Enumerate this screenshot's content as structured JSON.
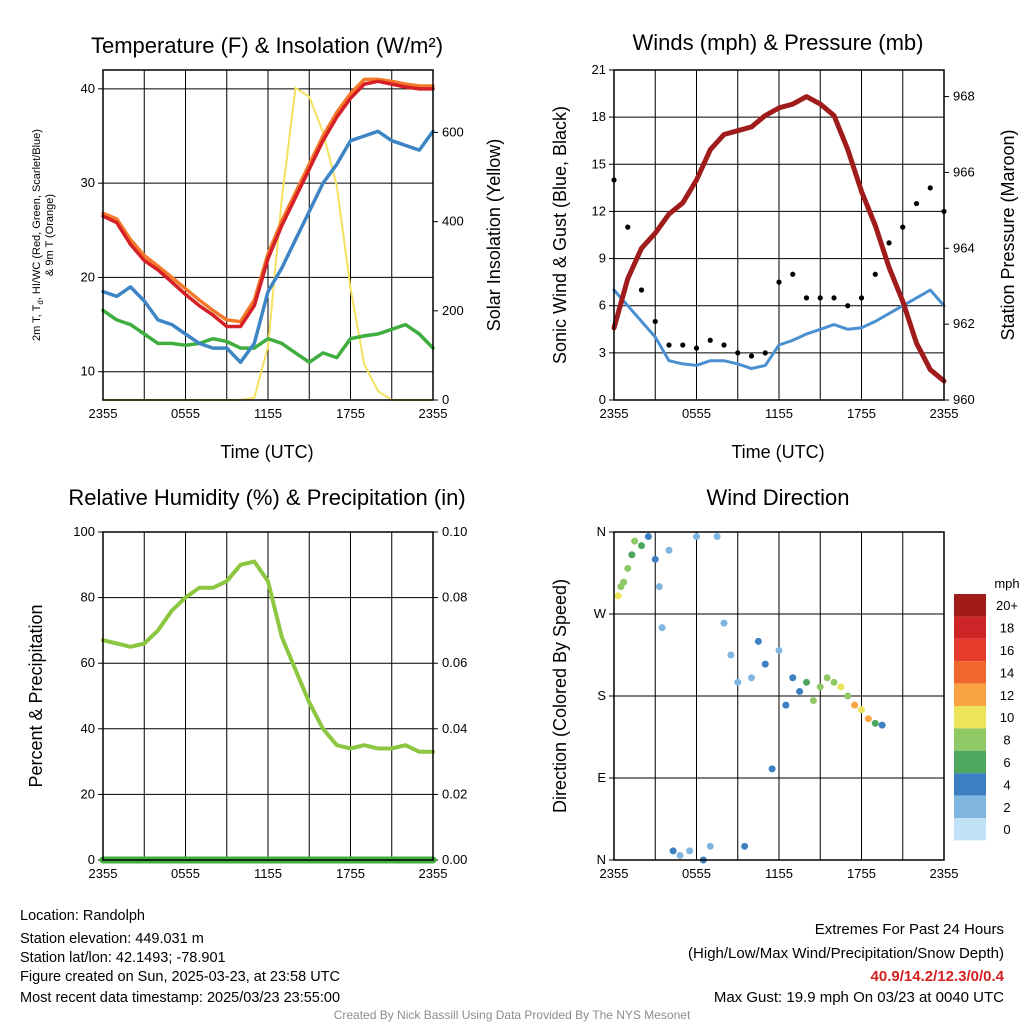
{
  "x_ticks": [
    "2355",
    "0555",
    "1155",
    "1755",
    "2355"
  ],
  "panels": {
    "temp": {
      "title": "Temperature (F) & Insolation (W/m²)",
      "ylabel_left_1": "2m T, T",
      "ylabel_left_sub": "d",
      "ylabel_left_2": ", HI/WC (Red, Green, Scarlet/Blue)",
      "ylabel_left_3": "& 9m T (Orange)",
      "ylabel_right": "Solar Insolation (Yellow)",
      "xlabel": "Time (UTC)",
      "yticks_left": [
        "10",
        "20",
        "30",
        "40"
      ],
      "yticks_right": [
        "0",
        "200",
        "400",
        "600"
      ]
    },
    "wind": {
      "title": "Winds (mph) & Pressure (mb)",
      "ylabel_left": "Sonic Wind & Gust (Blue, Black)",
      "ylabel_right": "Station Pressure (Maroon)",
      "xlabel": "Time (UTC)",
      "yticks_left": [
        "0",
        "3",
        "6",
        "9",
        "12",
        "15",
        "18",
        "21"
      ],
      "yticks_right": [
        "960",
        "962",
        "964",
        "966",
        "968"
      ]
    },
    "rh": {
      "title": "Relative Humidity (%) & Precipitation (in)",
      "ylabel_left": "Percent & Precipitation",
      "yticks_left": [
        "0",
        "20",
        "40",
        "60",
        "80",
        "100"
      ],
      "yticks_right": [
        "0.00",
        "0.02",
        "0.04",
        "0.06",
        "0.08",
        "0.10"
      ]
    },
    "dir": {
      "title": "Wind Direction",
      "ylabel_left": "Direction (Colored By Speed)",
      "yticks_left": [
        "N",
        "E",
        "S",
        "W",
        "N"
      ],
      "legend_unit": "mph",
      "legend_labels": [
        "20+",
        "18",
        "16",
        "14",
        "12",
        "10",
        "8",
        "6",
        "4",
        "2",
        "0"
      ],
      "legend_colors": [
        "#a11b1b",
        "#cc2427",
        "#e43b2c",
        "#f0672e",
        "#f9a343",
        "#ece45a",
        "#8fc965",
        "#4da85e",
        "#3c80c1",
        "#80b5e0",
        "#bfe2f6"
      ]
    }
  },
  "info": {
    "location": "Location: Randolph",
    "elevation": "Station elevation: 449.031 m",
    "latlon": "Station lat/lon: 42.1493; -78.901",
    "created": "Figure created on Sun, 2025-03-23, at 23:58 UTC",
    "recent": "Most recent data timestamp: 2025/03/23 23:55:00"
  },
  "extremes": {
    "title": "Extremes For Past 24 Hours",
    "subtitle": "(High/Low/Max Wind/Precipitation/Snow Depth)",
    "values": "40.9/14.2/12.3/0/0.4",
    "gust": "Max Gust: 19.9 mph On 03/23 at 0040 UTC"
  },
  "credit": "Created By Nick Bassill Using Data Provided By The NYS Mesonet",
  "chart_data": [
    {
      "type": "line",
      "title": "Temperature (F) & Insolation (W/m²)",
      "x": [
        0,
        1,
        2,
        3,
        4,
        5,
        6,
        7,
        8,
        9,
        10,
        11,
        12,
        13,
        14,
        15,
        16,
        17,
        18,
        19,
        20,
        21,
        22,
        23,
        24
      ],
      "xunit": "hours since 2355 UTC",
      "ylim": [
        7,
        42
      ],
      "y2lim": [
        0,
        740
      ],
      "series": [
        {
          "name": "2m T (Red)",
          "color": "#d62027",
          "axis": "left",
          "values": [
            26.5,
            25.8,
            23.5,
            21.8,
            20.8,
            19.5,
            18.2,
            17.0,
            16.0,
            14.8,
            14.8,
            17.0,
            22.0,
            25.5,
            28.5,
            31.5,
            34.5,
            37.0,
            39.0,
            40.5,
            40.8,
            40.5,
            40.2,
            40.0,
            40.0
          ]
        },
        {
          "name": "9m T (Orange)",
          "color": "#f47a2a",
          "axis": "left",
          "values": [
            26.8,
            26.2,
            24.0,
            22.3,
            21.2,
            20.0,
            18.8,
            17.6,
            16.5,
            15.5,
            15.3,
            17.6,
            22.5,
            26.0,
            29.0,
            32.0,
            35.0,
            37.5,
            39.5,
            41.0,
            41.0,
            40.8,
            40.5,
            40.3,
            40.3
          ]
        },
        {
          "name": "HI/WC (Blue)",
          "color": "#3d85c4",
          "axis": "left",
          "values": [
            18.5,
            18.0,
            19.0,
            17.5,
            15.5,
            15.0,
            14.0,
            13.0,
            12.5,
            12.5,
            11.0,
            13.0,
            18.5,
            21.0,
            24.0,
            27.0,
            30.0,
            32.0,
            34.5,
            35.0,
            35.5,
            34.5,
            34.0,
            33.5,
            35.5
          ]
        },
        {
          "name": "Td (Green)",
          "color": "#3fae3f",
          "axis": "left",
          "values": [
            16.5,
            15.5,
            15.0,
            14.0,
            13.0,
            13.0,
            12.8,
            13.0,
            13.5,
            13.2,
            12.5,
            12.5,
            13.5,
            13.0,
            12.0,
            11.0,
            12.0,
            11.5,
            13.5,
            13.8,
            14.0,
            14.5,
            15.0,
            14.0,
            12.5
          ]
        },
        {
          "name": "Solar Insolation (Yellow)",
          "color": "#f5e160",
          "axis": "right",
          "values": [
            0,
            0,
            0,
            0,
            0,
            0,
            0,
            0,
            0,
            0,
            0,
            5,
            120,
            450,
            700,
            680,
            600,
            480,
            250,
            80,
            20,
            0,
            0,
            0,
            0
          ]
        }
      ]
    },
    {
      "type": "line",
      "title": "Winds (mph) & Pressure (mb)",
      "x": [
        0,
        1,
        2,
        3,
        4,
        5,
        6,
        7,
        8,
        9,
        10,
        11,
        12,
        13,
        14,
        15,
        16,
        17,
        18,
        19,
        20,
        21,
        22,
        23,
        24
      ],
      "xunit": "hours since 2355 UTC",
      "ylim": [
        0,
        21
      ],
      "y2lim": [
        960,
        968.7
      ],
      "series": [
        {
          "name": "Sonic Wind (Blue)",
          "color": "#4a90d0",
          "axis": "left",
          "values": [
            7,
            6,
            5,
            4,
            2.5,
            2.3,
            2.2,
            2.5,
            2.5,
            2.3,
            2.0,
            2.2,
            3.5,
            3.8,
            4.2,
            4.5,
            4.8,
            4.5,
            4.6,
            5.0,
            5.5,
            6.0,
            6.5,
            7.0,
            6.0
          ]
        },
        {
          "name": "Gust (Black)",
          "color": "#000000",
          "axis": "left",
          "values": [
            14,
            11,
            7,
            5,
            3.5,
            3.5,
            3.3,
            3.8,
            3.5,
            3.0,
            2.8,
            3.0,
            7.5,
            8.0,
            6.5,
            6.5,
            6.5,
            6.0,
            6.5,
            8.0,
            10.0,
            11.0,
            12.5,
            13.5,
            12.0
          ]
        },
        {
          "name": "Station Pressure (Maroon)",
          "color": "#a01b1b",
          "axis": "right",
          "values": [
            961.9,
            963.2,
            964.0,
            964.4,
            964.9,
            965.2,
            965.8,
            966.6,
            967.0,
            967.1,
            967.2,
            967.5,
            967.7,
            967.8,
            968.0,
            967.8,
            967.5,
            966.6,
            965.5,
            964.6,
            963.5,
            962.6,
            961.5,
            960.8,
            960.5
          ]
        }
      ]
    },
    {
      "type": "line",
      "title": "Relative Humidity (%) & Precipitation (in)",
      "x": [
        0,
        1,
        2,
        3,
        4,
        5,
        6,
        7,
        8,
        9,
        10,
        11,
        12,
        13,
        14,
        15,
        16,
        17,
        18,
        19,
        20,
        21,
        22,
        23,
        24
      ],
      "xunit": "hours since 2355 UTC",
      "ylim": [
        0,
        100
      ],
      "y2lim": [
        0,
        0.1
      ],
      "series": [
        {
          "name": "Relative Humidity",
          "color": "#8dc641",
          "axis": "left",
          "values": [
            67,
            66,
            65,
            66,
            70,
            76,
            80,
            83,
            83,
            85,
            90,
            91,
            85,
            68,
            58,
            48,
            40,
            35,
            34,
            35,
            34,
            34,
            35,
            33,
            33
          ]
        },
        {
          "name": "Precipitation",
          "color": "#3fae3f",
          "axis": "right",
          "values": [
            0,
            0,
            0,
            0,
            0,
            0,
            0,
            0,
            0,
            0,
            0,
            0,
            0,
            0,
            0,
            0,
            0,
            0,
            0,
            0,
            0,
            0,
            0,
            0,
            0
          ]
        }
      ]
    },
    {
      "type": "scatter",
      "title": "Wind Direction",
      "xunit": "hours since 2355 UTC",
      "ylim": [
        0,
        360
      ],
      "yticks": [
        "N",
        "E",
        "S",
        "W",
        "N"
      ],
      "points": [
        {
          "x": 0.3,
          "y": 290,
          "speed": 9
        },
        {
          "x": 0.5,
          "y": 300,
          "speed": 8
        },
        {
          "x": 0.7,
          "y": 305,
          "speed": 7
        },
        {
          "x": 1.0,
          "y": 320,
          "speed": 7
        },
        {
          "x": 1.3,
          "y": 335,
          "speed": 6
        },
        {
          "x": 1.5,
          "y": 350,
          "speed": 7
        },
        {
          "x": 2.0,
          "y": 345,
          "speed": 5
        },
        {
          "x": 2.5,
          "y": 355,
          "speed": 3
        },
        {
          "x": 3.0,
          "y": 330,
          "speed": 3
        },
        {
          "x": 3.3,
          "y": 300,
          "speed": 2
        },
        {
          "x": 3.5,
          "y": 255,
          "speed": 2
        },
        {
          "x": 4.0,
          "y": 340,
          "speed": 2
        },
        {
          "x": 4.3,
          "y": 10,
          "speed": 3
        },
        {
          "x": 4.8,
          "y": 5,
          "speed": 2
        },
        {
          "x": 5.5,
          "y": 10,
          "speed": 2
        },
        {
          "x": 6.0,
          "y": 355,
          "speed": 1
        },
        {
          "x": 6.5,
          "y": 0,
          "speed": 3
        },
        {
          "x": 7.0,
          "y": 15,
          "speed": 2
        },
        {
          "x": 7.5,
          "y": 355,
          "speed": 2
        },
        {
          "x": 8.0,
          "y": 260,
          "speed": 1
        },
        {
          "x": 8.5,
          "y": 225,
          "speed": 2
        },
        {
          "x": 9.0,
          "y": 195,
          "speed": 2
        },
        {
          "x": 9.5,
          "y": 15,
          "speed": 3
        },
        {
          "x": 10.0,
          "y": 200,
          "speed": 2
        },
        {
          "x": 10.5,
          "y": 240,
          "speed": 3
        },
        {
          "x": 11.0,
          "y": 215,
          "speed": 4
        },
        {
          "x": 11.5,
          "y": 100,
          "speed": 4
        },
        {
          "x": 12.0,
          "y": 230,
          "speed": 2
        },
        {
          "x": 12.5,
          "y": 170,
          "speed": 4
        },
        {
          "x": 13.0,
          "y": 200,
          "speed": 3
        },
        {
          "x": 13.5,
          "y": 185,
          "speed": 4
        },
        {
          "x": 14.0,
          "y": 195,
          "speed": 6
        },
        {
          "x": 14.5,
          "y": 175,
          "speed": 7
        },
        {
          "x": 15.0,
          "y": 190,
          "speed": 8
        },
        {
          "x": 15.5,
          "y": 200,
          "speed": 7
        },
        {
          "x": 16.0,
          "y": 195,
          "speed": 8
        },
        {
          "x": 16.5,
          "y": 190,
          "speed": 9
        },
        {
          "x": 17.0,
          "y": 180,
          "speed": 8
        },
        {
          "x": 17.5,
          "y": 170,
          "speed": 11
        },
        {
          "x": 18.0,
          "y": 165,
          "speed": 10
        },
        {
          "x": 18.5,
          "y": 155,
          "speed": 12
        },
        {
          "x": 19.0,
          "y": 150,
          "speed": 6
        },
        {
          "x": 19.5,
          "y": 148,
          "speed": 4
        }
      ]
    }
  ]
}
